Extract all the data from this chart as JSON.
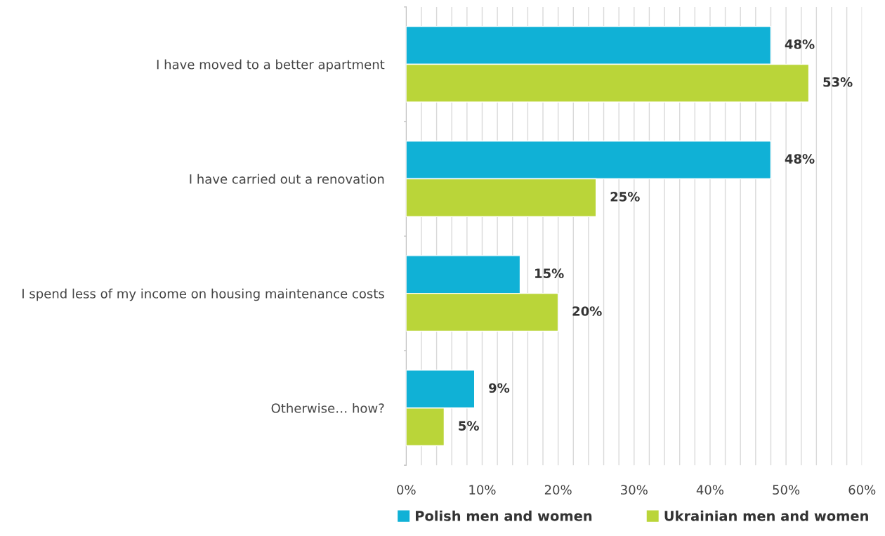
{
  "chart_data": {
    "type": "bar",
    "orientation": "horizontal",
    "categories": [
      "I have moved to a better apartment",
      "I have carried out a renovation",
      "I spend less of my income on housing maintenance costs",
      "Otherwise… how?"
    ],
    "series": [
      {
        "name": "Polish men and women",
        "color": "#10b1d6",
        "values": [
          48,
          48,
          15,
          9
        ],
        "value_labels": [
          "48%",
          "48%",
          "15%",
          "9%"
        ]
      },
      {
        "name": "Ukrainian men and women",
        "color": "#bad539",
        "values": [
          53,
          25,
          20,
          5
        ],
        "value_labels": [
          "53%",
          "25%",
          "20%",
          "5%"
        ]
      }
    ],
    "xlim": [
      0,
      60
    ],
    "xticks": [
      {
        "value": 0,
        "label": "0%"
      },
      {
        "value": 2,
        "label": null
      },
      {
        "value": 4,
        "label": null
      },
      {
        "value": 6,
        "label": null
      },
      {
        "value": 8,
        "label": null
      },
      {
        "value": 10,
        "label": "10%"
      },
      {
        "value": 12,
        "label": null
      },
      {
        "value": 14,
        "label": null
      },
      {
        "value": 16,
        "label": null
      },
      {
        "value": 18,
        "label": null
      },
      {
        "value": 20,
        "label": "20%"
      },
      {
        "value": 22,
        "label": null
      },
      {
        "value": 24,
        "label": null
      },
      {
        "value": 26,
        "label": null
      },
      {
        "value": 28,
        "label": null
      },
      {
        "value": 30,
        "label": "30%"
      },
      {
        "value": 32,
        "label": null
      },
      {
        "value": 34,
        "label": null
      },
      {
        "value": 36,
        "label": null
      },
      {
        "value": 38,
        "label": null
      },
      {
        "value": 40,
        "label": "40%"
      },
      {
        "value": 42,
        "label": null
      },
      {
        "value": 44,
        "label": null
      },
      {
        "value": 46,
        "label": null
      },
      {
        "value": 48,
        "label": null
      },
      {
        "value": 50,
        "label": "50%"
      },
      {
        "value": 52,
        "label": null
      },
      {
        "value": 54,
        "label": null
      },
      {
        "value": 56,
        "label": null
      },
      {
        "value": 58,
        "label": null
      },
      {
        "value": 60,
        "label": "60%"
      }
    ],
    "grid": "x",
    "legend": "bottom"
  }
}
